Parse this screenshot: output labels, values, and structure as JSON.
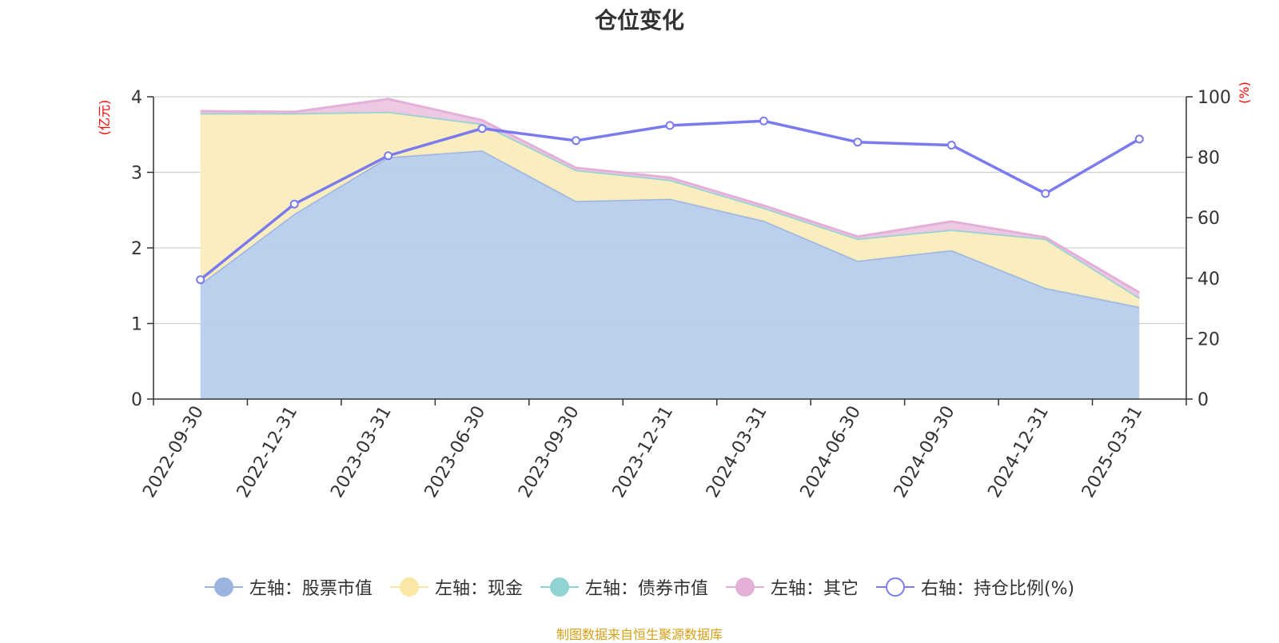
{
  "chart_data": {
    "type": "area",
    "title": "仓位变化",
    "categories": [
      "2022-09-30",
      "2022-12-31",
      "2023-03-31",
      "2023-06-30",
      "2023-09-30",
      "2023-12-31",
      "2024-03-31",
      "2024-06-30",
      "2024-09-30",
      "2024-12-31",
      "2025-03-31"
    ],
    "left_axis": {
      "unit_label": "(亿元)",
      "ylim": [
        0,
        4
      ],
      "ticks": [
        "0",
        "1",
        "2",
        "3",
        "4"
      ]
    },
    "right_axis": {
      "unit_label": "(%)",
      "ylim": [
        0,
        100
      ],
      "ticks": [
        "0",
        "20",
        "40",
        "60",
        "80",
        "100"
      ]
    },
    "stacked": true,
    "grid": true,
    "legend_position": "bottom",
    "series": [
      {
        "name": "左轴：股票市值",
        "axis": "left",
        "kind": "area",
        "color": "#9bb5e0",
        "fill": "#b8cceb",
        "values": [
          1.52,
          2.45,
          3.2,
          3.29,
          2.62,
          2.65,
          2.36,
          1.83,
          1.97,
          1.47,
          1.22
        ]
      },
      {
        "name": "左轴：现金",
        "axis": "left",
        "kind": "area",
        "color": "#f9e7a6",
        "fill": "#faedbd",
        "values": [
          2.26,
          1.33,
          0.6,
          0.35,
          0.41,
          0.25,
          0.17,
          0.29,
          0.27,
          0.65,
          0.12
        ]
      },
      {
        "name": "左轴：债券市值",
        "axis": "left",
        "kind": "area",
        "color": "#8fd3d3",
        "fill": "#a8dcdc",
        "values": [
          0,
          0,
          0,
          0,
          0,
          0,
          0,
          0,
          0,
          0,
          0
        ]
      },
      {
        "name": "左轴：其它",
        "axis": "left",
        "kind": "area",
        "color": "#e4b0d8",
        "fill": "#ecc6e2",
        "values": [
          0.03,
          0.02,
          0.17,
          0.05,
          0.03,
          0.03,
          0.03,
          0.03,
          0.11,
          0.02,
          0.07
        ]
      },
      {
        "name": "右轴：持仓比例(%)",
        "axis": "right",
        "kind": "line",
        "color": "#7b7bef",
        "values": [
          39.5,
          64.5,
          80.5,
          89.5,
          85.5,
          90.5,
          92,
          85,
          84,
          68,
          86
        ]
      }
    ]
  },
  "source_note": "制图数据来自恒生聚源数据库"
}
